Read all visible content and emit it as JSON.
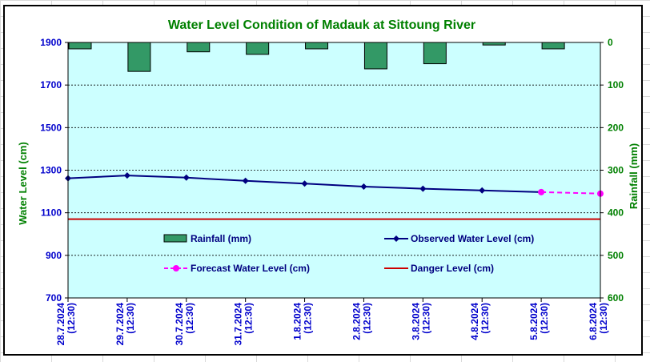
{
  "chart_data": {
    "type": "bar+line",
    "title": "Water Level Condition of Madauk at Sittoung River",
    "ylabel_left": "Water Level (cm)",
    "ylabel_right": "Rainfall (mm)",
    "ylim_left": [
      700,
      1900
    ],
    "ylim_right": [
      0,
      600
    ],
    "yticks_left": [
      "700",
      "900",
      "1100",
      "1300",
      "1500",
      "1700",
      "1900"
    ],
    "yticks_right": [
      "0",
      "100",
      "200",
      "300",
      "400",
      "500",
      "600"
    ],
    "categories": [
      [
        "28.7.2024",
        "(12:30)"
      ],
      [
        "29.7.2024",
        "(12:30)"
      ],
      [
        "30.7.2024",
        "(12:30)"
      ],
      [
        "31.7.2024",
        "(12:30)"
      ],
      [
        "1.8.2024",
        "(12:30)"
      ],
      [
        "2.8.2024",
        "(12:30)"
      ],
      [
        "3.8.2024",
        "(12:30)"
      ],
      [
        "4.8.2024",
        "(12:30)"
      ],
      [
        "5.8.2024",
        "(12:30)"
      ],
      [
        "6.8.2024",
        "(12:30)"
      ]
    ],
    "series": [
      {
        "name": "Rainfall (mm)",
        "kind": "bar",
        "axis": "right",
        "color": "#339966",
        "values": [
          15,
          68,
          22,
          28,
          15,
          62,
          50,
          6,
          15,
          null
        ]
      },
      {
        "name": "Observed Water Level (cm)",
        "kind": "line",
        "axis": "left",
        "color": "#000080",
        "values": [
          1262,
          1275,
          1265,
          1250,
          1237,
          1223,
          1213,
          1205,
          1197,
          null
        ]
      },
      {
        "name": "Forecast Water Level (cm)",
        "kind": "dashed-line",
        "axis": "left",
        "color": "#ff00ff",
        "values": [
          null,
          null,
          null,
          null,
          null,
          null,
          null,
          null,
          1197,
          1190
        ]
      },
      {
        "name": "Danger Level (cm)",
        "kind": "hline",
        "axis": "left",
        "color": "#cc0000",
        "value": 1070
      }
    ],
    "grid": true,
    "legend": "inside-bottom",
    "colors": {
      "plot_bg": "#ccffff",
      "title": "#008000",
      "left_axis": "#0000cc",
      "right_axis": "#008000"
    }
  }
}
